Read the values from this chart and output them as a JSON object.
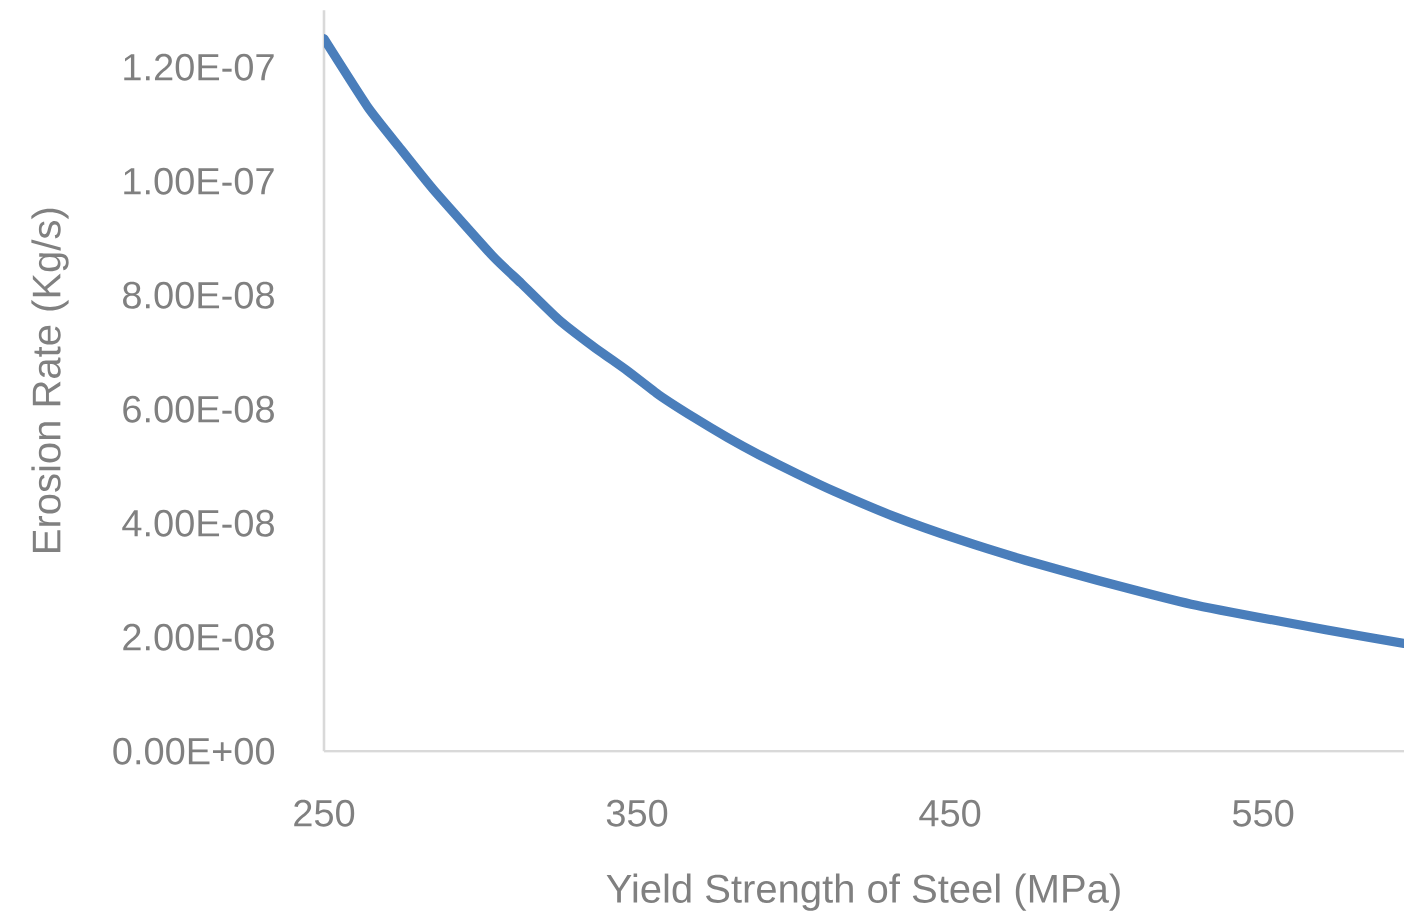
{
  "chart_data": {
    "type": "line",
    "xlabel": "Yield Strength of Steel (MPa)",
    "ylabel": "Erosion Rate (Kg/s)",
    "x": [
      250,
      264,
      274,
      285,
      304,
      313,
      325,
      336,
      347,
      357,
      368,
      379,
      389,
      401,
      413,
      432,
      453,
      474,
      497,
      527,
      570,
      595
    ],
    "values": [
      1.25e-07,
      1.13e-07,
      1.06e-07,
      9.85e-08,
      8.68e-08,
      8.21e-08,
      7.57e-08,
      7.1e-08,
      6.67e-08,
      6.25e-08,
      5.86e-08,
      5.5e-08,
      5.2e-08,
      4.87e-08,
      4.56e-08,
      4.12e-08,
      3.71e-08,
      3.35e-08,
      3e-08,
      2.58e-08,
      2.13e-08,
      1.89e-08
    ],
    "color": "#4a7ebb",
    "line_style": "solid",
    "xlim": [
      250,
      595
    ],
    "ylim": [
      0,
      1.3e-07
    ],
    "xticks": [
      250,
      350,
      450,
      550
    ],
    "yticks": [
      {
        "value": 0,
        "label": "0.00E+00"
      },
      {
        "value": 2e-08,
        "label": "2.00E-08"
      },
      {
        "value": 4e-08,
        "label": "4.00E-08"
      },
      {
        "value": 6e-08,
        "label": "6.00E-08"
      },
      {
        "value": 8e-08,
        "label": "8.00E-08"
      },
      {
        "value": 1e-07,
        "label": "1.00E-07"
      },
      {
        "value": 1.2e-07,
        "label": "1.20E-07"
      }
    ]
  }
}
